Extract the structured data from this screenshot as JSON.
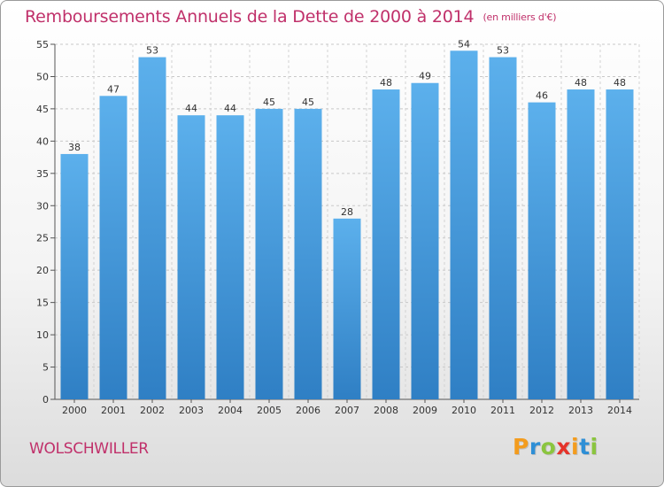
{
  "header": {
    "title": "Remboursements Annuels de la Dette de 2000 à 2014",
    "unit": "(en milliers d'€)"
  },
  "footer": {
    "commune": "WOLSCHWILLER",
    "logo_letters": [
      {
        "char": "P",
        "color": "#f39c1e"
      },
      {
        "char": "r",
        "color": "#2e8fd6"
      },
      {
        "char": "o",
        "color": "#8bc53f"
      },
      {
        "char": "x",
        "color": "#e5332a"
      },
      {
        "char": "i",
        "color": "#f39c1e"
      },
      {
        "char": "t",
        "color": "#2e8fd6"
      },
      {
        "char": "i",
        "color": "#8bc53f"
      }
    ]
  },
  "chart_data": {
    "type": "bar",
    "title": "Remboursements Annuels de la Dette de 2000 à 2014",
    "xlabel": "",
    "ylabel": "",
    "categories": [
      "2000",
      "2001",
      "2002",
      "2003",
      "2004",
      "2005",
      "2006",
      "2007",
      "2008",
      "2009",
      "2010",
      "2011",
      "2012",
      "2013",
      "2014"
    ],
    "values": [
      38,
      47,
      53,
      44,
      44,
      45,
      45,
      28,
      48,
      49,
      54,
      53,
      46,
      48,
      48
    ],
    "ylim": [
      0,
      55
    ],
    "yticks": [
      0,
      5,
      10,
      15,
      20,
      25,
      30,
      35,
      40,
      45,
      50,
      55
    ],
    "grid": true,
    "bar_color": "#4a9fe0",
    "legend": "none"
  }
}
